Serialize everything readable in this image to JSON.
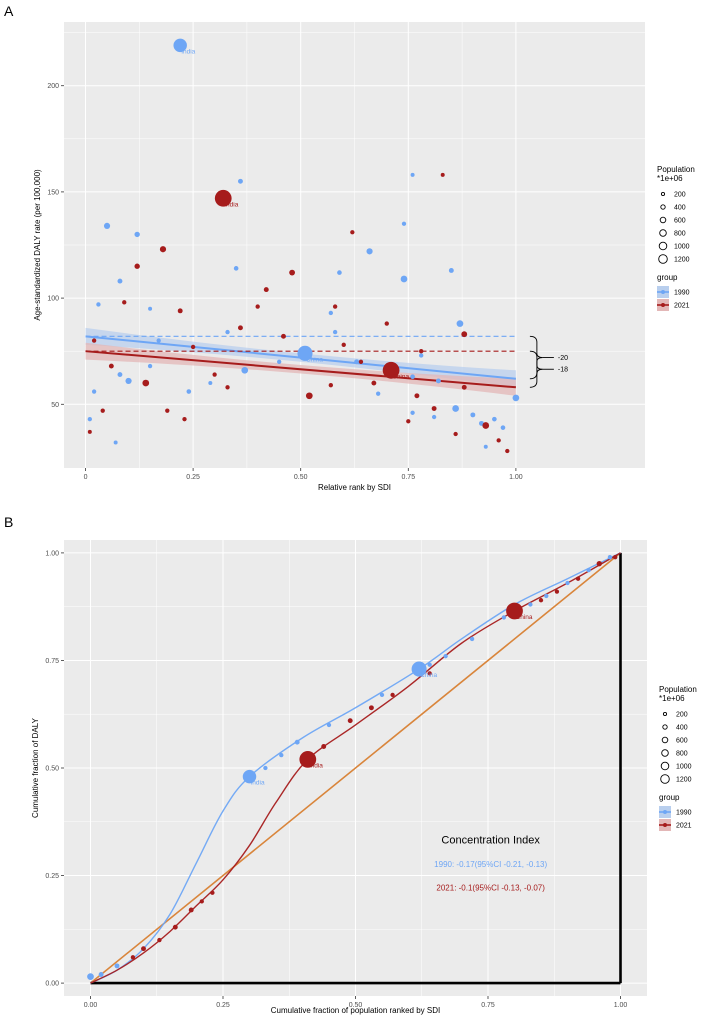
{
  "panels": {
    "A": {
      "label": "A"
    },
    "B": {
      "label": "B"
    }
  },
  "colors": {
    "c1990": "#6ea6f5",
    "c2021": "#a61c1c",
    "c1990_band": "#b9cfee",
    "c2021_band": "#e3b7b7",
    "equality": "#d9853b",
    "panel_bg": "#ebebeb",
    "grid": "#ffffff"
  },
  "chart_data": [
    {
      "type": "scatter",
      "panel": "A",
      "xlabel": "Relative rank by SDI",
      "ylabel": "Age-standardized DALY rate (per 100,000)",
      "xlim": [
        -0.05,
        1.3
      ],
      "ylim": [
        20,
        230
      ],
      "x_ticks": [
        0,
        0.25,
        0.5,
        0.75,
        1.0
      ],
      "x_tick_labels": [
        "0",
        "0.25",
        "0.50",
        "0.75",
        "1.00"
      ],
      "y_ticks": [
        50,
        100,
        150,
        200
      ],
      "y_tick_labels": [
        "50",
        "100",
        "150",
        "200"
      ],
      "grid": true,
      "legend_position": "right",
      "legend": {
        "size_title": "Population\n*1e+06",
        "sizes": [
          "200",
          "400",
          "600",
          "800",
          "1000",
          "1200"
        ],
        "group_title": "group",
        "groups": [
          "1990",
          "2021"
        ]
      },
      "series": [
        {
          "name": "1990",
          "points": [
            {
              "x": 0.22,
              "y": 219,
              "pop": 850,
              "label": "India"
            },
            {
              "x": 0.36,
              "y": 155,
              "pop": 60
            },
            {
              "x": 0.05,
              "y": 134,
              "pop": 120
            },
            {
              "x": 0.12,
              "y": 130,
              "pop": 80
            },
            {
              "x": 0.66,
              "y": 122,
              "pop": 120
            },
            {
              "x": 0.74,
              "y": 135,
              "pop": 40
            },
            {
              "x": 0.74,
              "y": 109,
              "pop": 150
            },
            {
              "x": 0.59,
              "y": 112,
              "pop": 50
            },
            {
              "x": 0.85,
              "y": 113,
              "pop": 60
            },
            {
              "x": 0.08,
              "y": 108,
              "pop": 60
            },
            {
              "x": 0.35,
              "y": 114,
              "pop": 50
            },
            {
              "x": 0.03,
              "y": 97,
              "pop": 40
            },
            {
              "x": 0.15,
              "y": 95,
              "pop": 30
            },
            {
              "x": 0.57,
              "y": 93,
              "pop": 40
            },
            {
              "x": 0.87,
              "y": 88,
              "pop": 150
            },
            {
              "x": 0.33,
              "y": 84,
              "pop": 40
            },
            {
              "x": 0.17,
              "y": 80,
              "pop": 40
            },
            {
              "x": 0.51,
              "y": 74,
              "pop": 1100,
              "label": "China"
            },
            {
              "x": 0.63,
              "y": 70,
              "pop": 60
            },
            {
              "x": 0.78,
              "y": 73,
              "pop": 40
            },
            {
              "x": 0.37,
              "y": 66,
              "pop": 150
            },
            {
              "x": 0.1,
              "y": 61,
              "pop": 120
            },
            {
              "x": 0.08,
              "y": 64,
              "pop": 60
            },
            {
              "x": 0.15,
              "y": 68,
              "pop": 40
            },
            {
              "x": 0.24,
              "y": 56,
              "pop": 50
            },
            {
              "x": 0.02,
              "y": 56,
              "pop": 40
            },
            {
              "x": 0.72,
              "y": 67,
              "pop": 40
            },
            {
              "x": 0.76,
              "y": 63,
              "pop": 50
            },
            {
              "x": 0.82,
              "y": 61,
              "pop": 60
            },
            {
              "x": 0.86,
              "y": 48,
              "pop": 150
            },
            {
              "x": 0.9,
              "y": 45,
              "pop": 60
            },
            {
              "x": 0.92,
              "y": 41,
              "pop": 60
            },
            {
              "x": 0.95,
              "y": 43,
              "pop": 50
            },
            {
              "x": 0.97,
              "y": 39,
              "pop": 50
            },
            {
              "x": 1.0,
              "y": 53,
              "pop": 150
            },
            {
              "x": 0.81,
              "y": 44,
              "pop": 40
            },
            {
              "x": 0.76,
              "y": 46,
              "pop": 40
            },
            {
              "x": 0.01,
              "y": 43,
              "pop": 40
            },
            {
              "x": 0.07,
              "y": 32,
              "pop": 30
            },
            {
              "x": 0.76,
              "y": 158,
              "pop": 30
            },
            {
              "x": 0.58,
              "y": 84,
              "pop": 40
            },
            {
              "x": 0.45,
              "y": 70,
              "pop": 40
            },
            {
              "x": 0.29,
              "y": 60,
              "pop": 30
            },
            {
              "x": 0.68,
              "y": 55,
              "pop": 40
            },
            {
              "x": 0.93,
              "y": 30,
              "pop": 30
            }
          ],
          "trend": {
            "x": [
              0,
              1
            ],
            "y": [
              82,
              62
            ]
          },
          "ref_line_y": 82
        },
        {
          "name": "2021",
          "points": [
            {
              "x": 0.32,
              "y": 147,
              "pop": 1400,
              "label": "India"
            },
            {
              "x": 0.71,
              "y": 66,
              "pop": 1400,
              "label": "China"
            },
            {
              "x": 0.18,
              "y": 123,
              "pop": 120
            },
            {
              "x": 0.48,
              "y": 112,
              "pop": 100
            },
            {
              "x": 0.62,
              "y": 131,
              "pop": 40
            },
            {
              "x": 0.83,
              "y": 158,
              "pop": 30
            },
            {
              "x": 0.12,
              "y": 115,
              "pop": 80
            },
            {
              "x": 0.88,
              "y": 83,
              "pop": 100
            },
            {
              "x": 0.22,
              "y": 94,
              "pop": 60
            },
            {
              "x": 0.36,
              "y": 86,
              "pop": 60
            },
            {
              "x": 0.46,
              "y": 82,
              "pop": 60
            },
            {
              "x": 0.14,
              "y": 60,
              "pop": 150
            },
            {
              "x": 0.52,
              "y": 54,
              "pop": 150
            },
            {
              "x": 0.93,
              "y": 40,
              "pop": 150
            },
            {
              "x": 0.42,
              "y": 104,
              "pop": 60
            },
            {
              "x": 0.3,
              "y": 64,
              "pop": 40
            },
            {
              "x": 0.06,
              "y": 68,
              "pop": 60
            },
            {
              "x": 0.02,
              "y": 80,
              "pop": 40
            },
            {
              "x": 0.01,
              "y": 37,
              "pop": 30
            },
            {
              "x": 0.04,
              "y": 47,
              "pop": 40
            },
            {
              "x": 0.19,
              "y": 47,
              "pop": 40
            },
            {
              "x": 0.23,
              "y": 43,
              "pop": 40
            },
            {
              "x": 0.57,
              "y": 59,
              "pop": 40
            },
            {
              "x": 0.6,
              "y": 78,
              "pop": 40
            },
            {
              "x": 0.67,
              "y": 60,
              "pop": 60
            },
            {
              "x": 0.77,
              "y": 54,
              "pop": 60
            },
            {
              "x": 0.81,
              "y": 48,
              "pop": 60
            },
            {
              "x": 0.88,
              "y": 58,
              "pop": 60
            },
            {
              "x": 0.96,
              "y": 33,
              "pop": 40
            },
            {
              "x": 0.98,
              "y": 28,
              "pop": 40
            },
            {
              "x": 0.78,
              "y": 75,
              "pop": 40
            },
            {
              "x": 0.4,
              "y": 96,
              "pop": 40
            },
            {
              "x": 0.25,
              "y": 77,
              "pop": 40
            },
            {
              "x": 0.09,
              "y": 98,
              "pop": 40
            },
            {
              "x": 0.58,
              "y": 96,
              "pop": 40
            },
            {
              "x": 0.7,
              "y": 88,
              "pop": 40
            },
            {
              "x": 0.75,
              "y": 42,
              "pop": 40
            },
            {
              "x": 0.86,
              "y": 36,
              "pop": 40
            },
            {
              "x": 0.64,
              "y": 70,
              "pop": 40
            },
            {
              "x": 0.33,
              "y": 58,
              "pop": 40
            }
          ],
          "trend": {
            "x": [
              0,
              1
            ],
            "y": [
              75,
              58
            ]
          },
          "ref_line_y": 75
        }
      ],
      "annotations": [
        "-20",
        "-18"
      ]
    },
    {
      "type": "line",
      "panel": "B",
      "xlabel": "Cumulative fraction of population ranked by SDI",
      "ylabel": "Cumulative fraction of DALY",
      "xlim": [
        -0.05,
        1.05
      ],
      "ylim": [
        -0.03,
        1.03
      ],
      "x_ticks": [
        0,
        0.25,
        0.5,
        0.75,
        1.0
      ],
      "x_tick_labels": [
        "0.00",
        "0.25",
        "0.50",
        "0.75",
        "1.00"
      ],
      "y_ticks": [
        0,
        0.25,
        0.5,
        0.75,
        1.0
      ],
      "y_tick_labels": [
        "0.00",
        "0.25",
        "0.50",
        "0.75",
        "1.00"
      ],
      "grid": true,
      "legend_position": "right",
      "legend": {
        "size_title": "Population\n*1e+06",
        "sizes": [
          "200",
          "400",
          "600",
          "800",
          "1000",
          "1200"
        ],
        "group_title": "group",
        "groups": [
          "1990",
          "2021"
        ]
      },
      "concentration_index": {
        "title": "Concentration Index",
        "line1990": "1990: -0.17(95%CI -0.21, -0.13)",
        "line2021": "2021: -0.1(95%CI -0.13, -0.07)"
      },
      "equality_line": {
        "x": [
          0,
          1
        ],
        "y": [
          0,
          1
        ]
      },
      "series": [
        {
          "name": "1990",
          "curve": {
            "x": [
              0,
              0.05,
              0.1,
              0.15,
              0.2,
              0.25,
              0.3,
              0.4,
              0.5,
              0.62,
              0.7,
              0.8,
              0.9,
              1.0
            ],
            "y": [
              0,
              0.03,
              0.08,
              0.16,
              0.28,
              0.4,
              0.48,
              0.57,
              0.64,
              0.73,
              0.8,
              0.88,
              0.94,
              1.0
            ]
          },
          "points": [
            {
              "x": 0.3,
              "y": 0.48,
              "pop": 850,
              "label": "India"
            },
            {
              "x": 0.62,
              "y": 0.73,
              "pop": 1100,
              "label": "China"
            },
            {
              "x": 0.0,
              "y": 0.015,
              "pop": 150
            },
            {
              "x": 0.02,
              "y": 0.02,
              "pop": 60
            },
            {
              "x": 0.05,
              "y": 0.04,
              "pop": 60
            },
            {
              "x": 0.33,
              "y": 0.5,
              "pop": 40
            },
            {
              "x": 0.36,
              "y": 0.53,
              "pop": 40
            },
            {
              "x": 0.39,
              "y": 0.56,
              "pop": 60
            },
            {
              "x": 0.45,
              "y": 0.6,
              "pop": 40
            },
            {
              "x": 0.55,
              "y": 0.67,
              "pop": 40
            },
            {
              "x": 0.64,
              "y": 0.74,
              "pop": 40
            },
            {
              "x": 0.67,
              "y": 0.76,
              "pop": 40
            },
            {
              "x": 0.72,
              "y": 0.8,
              "pop": 40
            },
            {
              "x": 0.78,
              "y": 0.85,
              "pop": 40
            },
            {
              "x": 0.83,
              "y": 0.88,
              "pop": 40
            },
            {
              "x": 0.86,
              "y": 0.9,
              "pop": 40
            },
            {
              "x": 0.9,
              "y": 0.93,
              "pop": 40
            },
            {
              "x": 0.94,
              "y": 0.96,
              "pop": 40
            },
            {
              "x": 0.98,
              "y": 0.99,
              "pop": 40
            }
          ]
        },
        {
          "name": "2021",
          "curve": {
            "x": [
              0,
              0.05,
              0.1,
              0.15,
              0.2,
              0.25,
              0.3,
              0.35,
              0.41,
              0.5,
              0.6,
              0.7,
              0.8,
              0.9,
              1.0
            ],
            "y": [
              0,
              0.03,
              0.07,
              0.12,
              0.18,
              0.24,
              0.32,
              0.42,
              0.52,
              0.6,
              0.69,
              0.79,
              0.865,
              0.93,
              1.0
            ]
          },
          "points": [
            {
              "x": 0.41,
              "y": 0.52,
              "pop": 1400,
              "label": "India"
            },
            {
              "x": 0.8,
              "y": 0.865,
              "pop": 1400,
              "label": "China"
            },
            {
              "x": 0.08,
              "y": 0.06,
              "pop": 40
            },
            {
              "x": 0.1,
              "y": 0.08,
              "pop": 60
            },
            {
              "x": 0.13,
              "y": 0.1,
              "pop": 40
            },
            {
              "x": 0.16,
              "y": 0.13,
              "pop": 60
            },
            {
              "x": 0.19,
              "y": 0.17,
              "pop": 60
            },
            {
              "x": 0.21,
              "y": 0.19,
              "pop": 40
            },
            {
              "x": 0.23,
              "y": 0.21,
              "pop": 40
            },
            {
              "x": 0.44,
              "y": 0.55,
              "pop": 60
            },
            {
              "x": 0.49,
              "y": 0.61,
              "pop": 60
            },
            {
              "x": 0.53,
              "y": 0.64,
              "pop": 60
            },
            {
              "x": 0.57,
              "y": 0.67,
              "pop": 40
            },
            {
              "x": 0.64,
              "y": 0.72,
              "pop": 40
            },
            {
              "x": 0.85,
              "y": 0.89,
              "pop": 40
            },
            {
              "x": 0.88,
              "y": 0.91,
              "pop": 40
            },
            {
              "x": 0.92,
              "y": 0.94,
              "pop": 40
            },
            {
              "x": 0.96,
              "y": 0.975,
              "pop": 80
            },
            {
              "x": 0.99,
              "y": 0.99,
              "pop": 40
            }
          ]
        }
      ]
    }
  ]
}
